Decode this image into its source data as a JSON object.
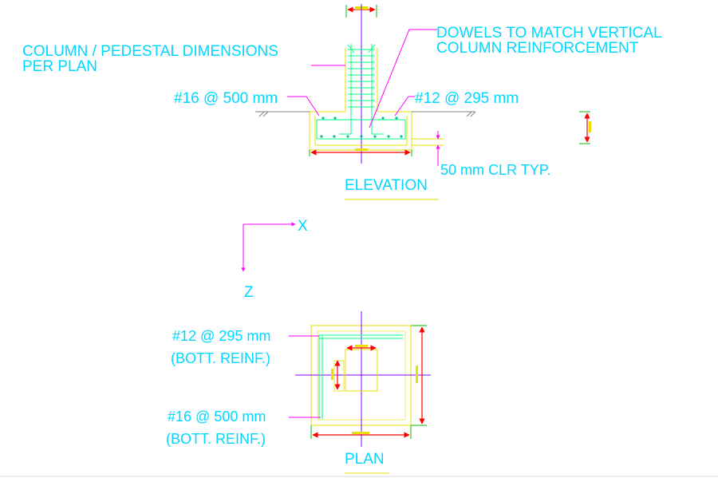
{
  "labels": {
    "column_dims_line1": "COLUMN / PEDESTAL DIMENSIONS",
    "column_dims_line2": "PER PLAN",
    "dowels_line1": "DOWELS TO MATCH VERTICAL",
    "dowels_line2": "COLUMN REINFORCEMENT",
    "elev_bar_left": "#16 @ 500 mm",
    "elev_bar_right": "#12 @ 295 mm",
    "clear_cover": "50 mm CLR TYP.",
    "elevation_title": "ELEVATION",
    "axis_x": "X",
    "axis_z": "Z",
    "plan_bar_top_line1": "#12 @ 295 mm",
    "plan_bar_top_line2": "(BOTT. REINF.)",
    "plan_bar_bottom_line1": "#16 @ 500 mm",
    "plan_bar_bottom_line2": "(BOTT. REINF.)",
    "plan_title": "PLAN"
  },
  "colors": {
    "label": "#00d8ff",
    "leader": "#ff00ff",
    "outline": "#e8e000",
    "rebar": "#00ff80",
    "dimension_arrow": "#ff0000",
    "dimension_line": "#00c000",
    "centerline": "#8000ff",
    "ground": "#808080"
  }
}
